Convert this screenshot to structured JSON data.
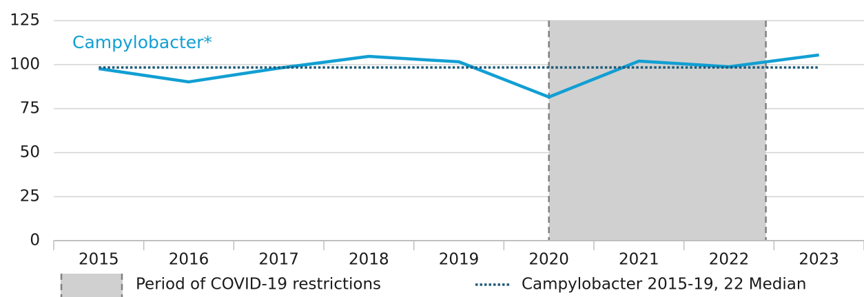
{
  "chart_data": {
    "type": "line",
    "annotation": "Campylobacter*",
    "categories": [
      "2015",
      "2016",
      "2017",
      "2018",
      "2019",
      "2020",
      "2021",
      "2022",
      "2023"
    ],
    "series": [
      {
        "name": "Campylobacter",
        "color": "#119fd3",
        "values": [
          97.7,
          90.2,
          98,
          104.7,
          101.6,
          81.6,
          102,
          98.8,
          105.5
        ]
      },
      {
        "name": "Campylobacter 2015-19, 22 Median",
        "color": "#1d5a78",
        "style": "dotted",
        "values": [
          98.4,
          98.4,
          98.4,
          98.4,
          98.4,
          98.4,
          98.4,
          98.4,
          98.4
        ]
      }
    ],
    "shaded_period": {
      "name": "Period of COVID-19 restrictions",
      "from": "2020",
      "to": "2022"
    },
    "ylim": [
      0,
      125
    ],
    "yticks": [
      0,
      25,
      50,
      75,
      100,
      125
    ],
    "grid": true
  }
}
